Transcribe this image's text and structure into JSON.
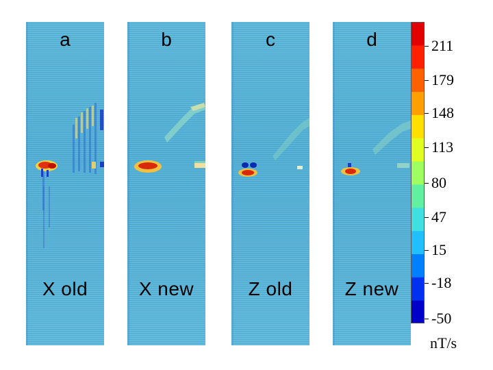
{
  "panels": [
    {
      "letter": "a",
      "caption": "X old"
    },
    {
      "letter": "b",
      "caption": "X new"
    },
    {
      "letter": "c",
      "caption": "Z old"
    },
    {
      "letter": "d",
      "caption": "Z new"
    }
  ],
  "colorbar": {
    "ticks": [
      "211",
      "179",
      "148",
      "113",
      "80",
      "47",
      "15",
      "-18",
      "-50"
    ],
    "unit": "nT/s",
    "colors": [
      "#0000c8",
      "#0030f0",
      "#0080ff",
      "#20c0ff",
      "#40e0e0",
      "#60f0a0",
      "#a0ff60",
      "#e0ff20",
      "#ffe000",
      "#ffa000",
      "#ff6000",
      "#ff2000",
      "#e00000"
    ]
  }
}
